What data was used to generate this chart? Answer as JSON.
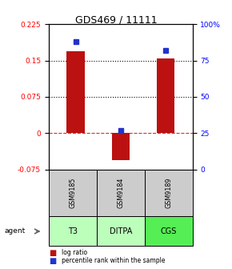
{
  "title": "GDS469 / 11111",
  "samples": [
    "GSM9185",
    "GSM9184",
    "GSM9189"
  ],
  "agents": [
    "T3",
    "DITPA",
    "CGS"
  ],
  "log_ratios": [
    0.17,
    -0.055,
    0.155
  ],
  "percentile_ranks": [
    0.88,
    0.27,
    0.82
  ],
  "ylim": [
    -0.075,
    0.225
  ],
  "y_ticks_left": [
    -0.075,
    0,
    0.075,
    0.15,
    0.225
  ],
  "y_ticks_right": [
    0,
    25,
    50,
    75,
    100
  ],
  "bar_color": "#bb1111",
  "dot_color": "#2233cc",
  "bg_color": "#ffffff",
  "zero_line_color": "#cc3333",
  "agent_colors": [
    "#bbffbb",
    "#bbffbb",
    "#55ee55"
  ],
  "sample_bg": "#cccccc",
  "legend_red": "log ratio",
  "legend_blue": "percentile rank within the sample"
}
